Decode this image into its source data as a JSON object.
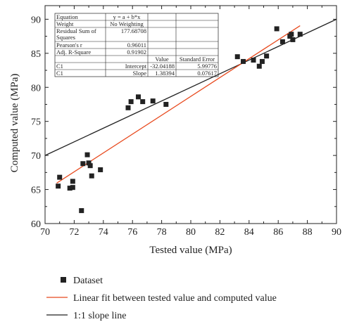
{
  "chart_data": {
    "type": "scatter",
    "xlabel": "Tested value (MPa)",
    "ylabel": "Computed value (MPa)",
    "xlim": [
      70,
      90
    ],
    "ylim": [
      60,
      92
    ],
    "x_ticks": [
      70,
      72,
      74,
      76,
      78,
      80,
      82,
      84,
      86,
      88,
      90
    ],
    "y_ticks": [
      60,
      65,
      70,
      75,
      80,
      85,
      90
    ],
    "grid": false,
    "legend_position": "bottom",
    "series": [
      {
        "name": "Dataset",
        "marker": "filled-square",
        "color": "#222222",
        "points": [
          [
            70.9,
            65.5
          ],
          [
            71.0,
            66.8
          ],
          [
            71.7,
            65.2
          ],
          [
            71.9,
            65.3
          ],
          [
            71.9,
            66.2
          ],
          [
            72.5,
            61.9
          ],
          [
            72.6,
            68.8
          ],
          [
            72.9,
            70.1
          ],
          [
            73.0,
            68.9
          ],
          [
            73.1,
            68.5
          ],
          [
            73.2,
            67.0
          ],
          [
            73.8,
            67.9
          ],
          [
            75.7,
            77.0
          ],
          [
            75.9,
            77.9
          ],
          [
            76.4,
            78.6
          ],
          [
            76.7,
            77.9
          ],
          [
            77.4,
            78.0
          ],
          [
            78.3,
            77.5
          ],
          [
            83.2,
            84.5
          ],
          [
            83.6,
            83.8
          ],
          [
            84.3,
            84.0
          ],
          [
            84.7,
            83.1
          ],
          [
            84.9,
            83.8
          ],
          [
            85.2,
            84.6
          ],
          [
            85.9,
            88.6
          ],
          [
            86.3,
            86.7
          ],
          [
            86.8,
            87.5
          ],
          [
            86.9,
            87.8
          ],
          [
            87.0,
            87.0
          ],
          [
            87.5,
            87.8
          ]
        ]
      },
      {
        "name": "Linear fit between tested value and computed value",
        "type": "line",
        "color": "#e8491d",
        "intercept": -32.04188,
        "slope": 1.38394,
        "x_range": [
          70.8,
          87.5
        ]
      },
      {
        "name": "1:1 slope line",
        "type": "line",
        "color": "#222222",
        "intercept": 0,
        "slope": 1,
        "x_range": [
          70,
          90
        ]
      }
    ],
    "stats_table": {
      "rows": [
        [
          "Equation",
          "y = a + b*x",
          "",
          ""
        ],
        [
          "Weight",
          "No Weighting",
          "",
          ""
        ],
        [
          "Residual Sum of Squares",
          "177.68708",
          "",
          ""
        ],
        [
          "Pearson's r",
          "0.96011",
          "",
          ""
        ],
        [
          "Adj. R-Square",
          "0.91902",
          "",
          ""
        ],
        [
          "",
          "",
          "Value",
          "Standard Error"
        ],
        [
          "C1",
          "Intercept",
          "-32.04188",
          "5.99776"
        ],
        [
          "C1",
          "Slope",
          "1.38394",
          "0.07617"
        ]
      ]
    }
  }
}
